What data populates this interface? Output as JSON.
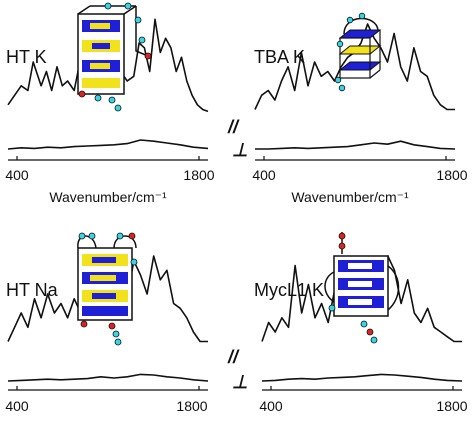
{
  "colors": {
    "line": "#111111",
    "yellow": "#f2e21b",
    "blue": "#1f1fd6",
    "red": "#dd2222",
    "cyan": "#36d6e6"
  },
  "chart_data": [
    {
      "type": "line",
      "title": "HT K",
      "xlabel": "Wavenumber/cm⁻¹",
      "xticks": [
        "400",
        "1800"
      ],
      "xlim": [
        400,
        1800
      ],
      "mark_parallel": "",
      "mark_perp": "",
      "structure_icon": "hybrid-quadruplex-icon",
      "series": [
        {
          "role": "parallel",
          "x": [
            350,
            400,
            450,
            500,
            540,
            600,
            640,
            680,
            720,
            760,
            800,
            850,
            900,
            950,
            1000,
            1050,
            1100,
            1150,
            1200,
            1250,
            1300,
            1340,
            1380,
            1420,
            1460,
            1500,
            1540,
            1580,
            1620,
            1660,
            1700,
            1740,
            1780,
            1820,
            1860
          ],
          "y": [
            0.35,
            0.45,
            0.55,
            0.5,
            0.8,
            0.55,
            0.7,
            0.5,
            0.75,
            0.55,
            0.6,
            0.5,
            0.85,
            0.55,
            0.9,
            0.6,
            0.8,
            0.65,
            0.7,
            0.6,
            0.65,
            1.0,
            0.95,
            0.7,
            1.25,
            0.9,
            1.05,
            0.95,
            0.7,
            0.85,
            0.6,
            0.45,
            0.35,
            0.3,
            0.28
          ]
        },
        {
          "role": "perpendicular",
          "x": [
            350,
            450,
            550,
            650,
            750,
            850,
            950,
            1050,
            1150,
            1250,
            1350,
            1450,
            1550,
            1650,
            1750,
            1860
          ],
          "y": [
            0.05,
            0.07,
            0.06,
            0.08,
            0.07,
            0.09,
            0.1,
            0.11,
            0.12,
            0.14,
            0.2,
            0.18,
            0.15,
            0.12,
            0.08,
            0.06
          ]
        }
      ]
    },
    {
      "type": "line",
      "title": "TBA K",
      "xlabel": "Wavenumber/cm⁻¹",
      "xticks": [
        "400",
        "1800"
      ],
      "xlim": [
        400,
        1800
      ],
      "mark_parallel": "//",
      "mark_perp": "⊥",
      "structure_icon": "antiparallel-quadruplex-icon",
      "series": [
        {
          "role": "parallel",
          "x": [
            350,
            400,
            450,
            500,
            550,
            600,
            650,
            700,
            750,
            800,
            850,
            900,
            950,
            1000,
            1050,
            1100,
            1150,
            1200,
            1250,
            1300,
            1350,
            1400,
            1450,
            1500,
            1550,
            1600,
            1650,
            1700,
            1750,
            1800,
            1860
          ],
          "y": [
            0.3,
            0.45,
            0.5,
            0.4,
            0.6,
            0.75,
            0.5,
            0.9,
            0.55,
            0.8,
            0.65,
            0.7,
            0.6,
            0.75,
            0.85,
            0.9,
            1.0,
            1.2,
            1.05,
            0.95,
            0.8,
            1.1,
            0.75,
            0.6,
            0.95,
            0.7,
            0.65,
            0.45,
            0.35,
            0.3,
            0.3
          ]
        },
        {
          "role": "perpendicular",
          "x": [
            350,
            450,
            550,
            650,
            750,
            850,
            950,
            1050,
            1150,
            1250,
            1350,
            1450,
            1550,
            1650,
            1750,
            1860
          ],
          "y": [
            0.05,
            0.05,
            0.06,
            0.07,
            0.06,
            0.07,
            0.08,
            0.09,
            0.12,
            0.15,
            0.13,
            0.18,
            0.12,
            0.09,
            0.06,
            0.05
          ]
        }
      ]
    },
    {
      "type": "line",
      "title": "HT Na",
      "xlabel": "",
      "xticks": [
        "400",
        "1800"
      ],
      "xlim": [
        400,
        1800
      ],
      "mark_parallel": "",
      "mark_perp": "",
      "structure_icon": "basket-quadruplex-icon",
      "series": [
        {
          "role": "parallel",
          "x": [
            350,
            400,
            450,
            500,
            550,
            600,
            650,
            700,
            750,
            800,
            850,
            900,
            950,
            1000,
            1050,
            1100,
            1150,
            1200,
            1250,
            1300,
            1350,
            1400,
            1450,
            1500,
            1550,
            1600,
            1650,
            1700,
            1750,
            1800,
            1860
          ],
          "y": [
            0.3,
            0.45,
            0.6,
            0.45,
            0.75,
            0.55,
            0.8,
            0.6,
            0.7,
            0.55,
            0.75,
            0.6,
            0.65,
            0.6,
            0.8,
            1.05,
            0.7,
            0.9,
            0.75,
            1.15,
            1.0,
            0.8,
            1.2,
            0.95,
            1.05,
            0.7,
            0.65,
            0.55,
            0.4,
            0.3,
            0.3
          ]
        },
        {
          "role": "perpendicular",
          "x": [
            350,
            450,
            550,
            650,
            750,
            850,
            950,
            1050,
            1150,
            1250,
            1350,
            1450,
            1550,
            1650,
            1750,
            1860
          ],
          "y": [
            0.05,
            0.06,
            0.07,
            0.08,
            0.07,
            0.08,
            0.09,
            0.12,
            0.1,
            0.12,
            0.16,
            0.15,
            0.12,
            0.1,
            0.07,
            0.05
          ]
        }
      ]
    },
    {
      "type": "line",
      "title": "MycL1 K",
      "xlabel": "",
      "xticks": [
        "400",
        "1800"
      ],
      "xlim": [
        400,
        1800
      ],
      "mark_parallel": "//",
      "mark_perp": "⊥",
      "structure_icon": "parallel-quadruplex-icon",
      "series": [
        {
          "role": "parallel",
          "x": [
            350,
            400,
            450,
            500,
            550,
            600,
            650,
            700,
            750,
            800,
            850,
            900,
            950,
            1000,
            1050,
            1100,
            1150,
            1200,
            1250,
            1300,
            1350,
            1400,
            1450,
            1500,
            1550,
            1600,
            1650,
            1700,
            1750,
            1800,
            1860
          ],
          "y": [
            0.3,
            0.5,
            0.4,
            0.55,
            0.45,
            1.1,
            0.6,
            0.9,
            0.55,
            0.7,
            0.5,
            0.85,
            0.6,
            0.75,
            0.65,
            0.9,
            1.0,
            1.15,
            0.8,
            1.2,
            1.05,
            0.7,
            0.95,
            0.6,
            0.5,
            0.65,
            0.45,
            0.4,
            0.35,
            0.3,
            0.3
          ]
        },
        {
          "role": "perpendicular",
          "x": [
            350,
            450,
            550,
            650,
            750,
            850,
            950,
            1050,
            1150,
            1250,
            1350,
            1450,
            1550,
            1650,
            1750,
            1860
          ],
          "y": [
            0.05,
            0.06,
            0.08,
            0.09,
            0.08,
            0.1,
            0.11,
            0.12,
            0.14,
            0.16,
            0.15,
            0.13,
            0.11,
            0.08,
            0.06,
            0.05
          ]
        }
      ]
    }
  ]
}
